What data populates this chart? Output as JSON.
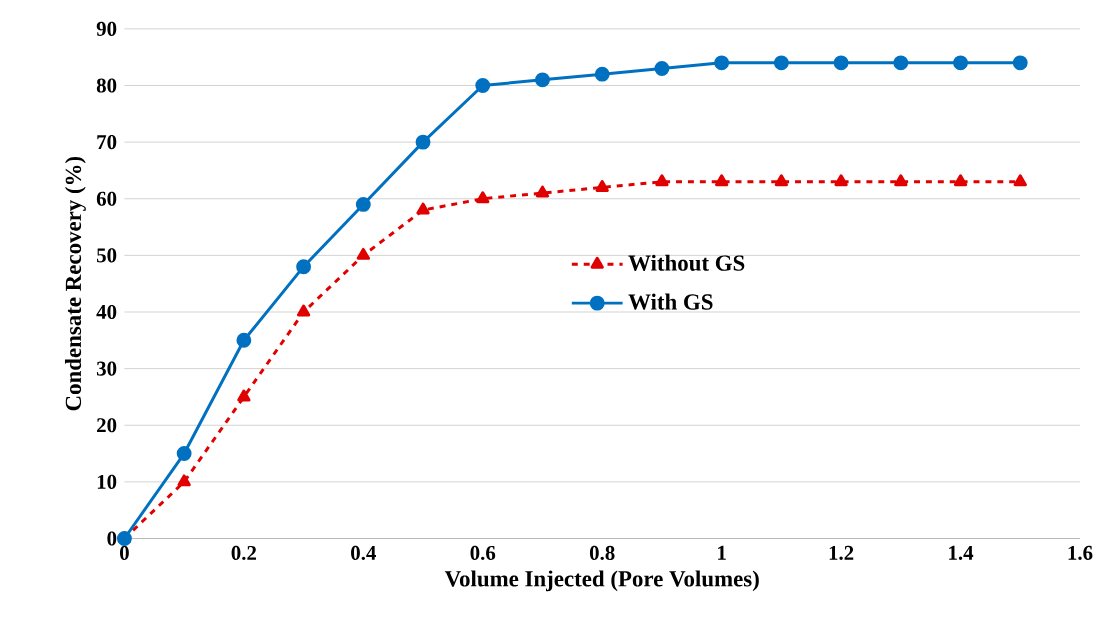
{
  "chart_data": {
    "type": "line",
    "xlabel": "Volume Injected (Pore Volumes)",
    "ylabel": "Condensate Recovery (%)",
    "xlim": [
      0,
      1.6
    ],
    "xticks": [
      0,
      0.2,
      0.4,
      0.6,
      0.8,
      1,
      1.2,
      1.4,
      1.6
    ],
    "ylim": [
      0,
      90
    ],
    "yticks": [
      0,
      10,
      20,
      30,
      40,
      50,
      60,
      70,
      80,
      90
    ],
    "grid": "y",
    "legend": "center",
    "x": [
      0,
      0.1,
      0.2,
      0.3,
      0.4,
      0.5,
      0.6,
      0.7,
      0.8,
      0.9,
      1,
      1.1,
      1.2,
      1.3,
      1.4,
      1.5
    ],
    "series": [
      {
        "name": "Without GS",
        "color": "#e00000",
        "marker": "triangle",
        "line_style": "dashed",
        "values": [
          0,
          10,
          25,
          40,
          50,
          58,
          60,
          61,
          62,
          63,
          63,
          63,
          63,
          63,
          63,
          63
        ]
      },
      {
        "name": "With GS",
        "color": "#0070c0",
        "marker": "circle",
        "line_style": "solid",
        "values": [
          0,
          15,
          35,
          48,
          59,
          70,
          80,
          81,
          82,
          83,
          84,
          84,
          84,
          84,
          84,
          84
        ]
      }
    ]
  }
}
